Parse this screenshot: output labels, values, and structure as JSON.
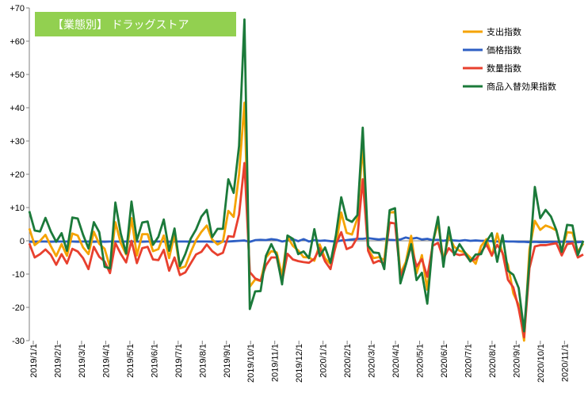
{
  "chart_data": {
    "type": "line",
    "title": "【業態別】 ドラッグストア",
    "title_bg_color": "#92D050",
    "ylim": [
      -30,
      70
    ],
    "yticks": [
      70,
      60,
      50,
      40,
      30,
      20,
      10,
      0,
      -10,
      -20,
      -30
    ],
    "ytick_labels": [
      "+70",
      "+60",
      "+50",
      "+40",
      "+30",
      "+20",
      "+10",
      "0",
      "-10",
      "-20",
      "-30"
    ],
    "xtick_labels": [
      "2019/1/1",
      "2019/2/1",
      "2019/3/1",
      "2019/4/1",
      "2019/5/1",
      "2019/6/1",
      "2019/7/1",
      "2019/8/1",
      "2019/9/1",
      "2019/10/1",
      "2019/11/1",
      "2019/12/1",
      "2020/1/1",
      "2020/2/1",
      "2020/3/1",
      "2020/4/1",
      "2020/5/1",
      "2020/6/1",
      "2020/7/1",
      "2020/8/1",
      "2020/9/1",
      "2020/10/1",
      "2020/11/1"
    ],
    "x_period": "weekly",
    "legend_position": "top-right",
    "grid": false,
    "series": [
      {
        "name": "支出指数",
        "color": "#F5A300",
        "values": [
          3.7,
          -1.3,
          0.0,
          1.8,
          -1.6,
          -4.6,
          -1.0,
          -4.5,
          2.2,
          1.6,
          -2.0,
          -4.0,
          2.7,
          -0.9,
          -2.4,
          -7.9,
          5.6,
          -0.7,
          -4.1,
          6.8,
          -4.4,
          2.0,
          2.0,
          -3.1,
          -2.5,
          1.6,
          -5.2,
          2.0,
          -8.3,
          -7.7,
          -3.5,
          0.2,
          2.7,
          4.6,
          0.4,
          -1.1,
          -0.2,
          9.0,
          7.2,
          20.0,
          41.5,
          -13.8,
          -11.6,
          -12.1,
          -5.0,
          -3.1,
          -3.5,
          -10.5,
          1.2,
          -1.5,
          -2.9,
          -4.9,
          -5.0,
          -6.0,
          -1.1,
          -5.3,
          -7.0,
          -1.6,
          8.5,
          2.4,
          1.9,
          6.7,
          28.8,
          -2.5,
          -5.2,
          -4.9,
          -5.8,
          8.5,
          8.7,
          -9.8,
          -6.4,
          1.5,
          -9.8,
          -4.3,
          -14.7,
          -0.7,
          5.5,
          -5.9,
          1.5,
          -1.8,
          -3.0,
          -3.5,
          -5.0,
          -6.9,
          -1.6,
          0.5,
          -4.5,
          2.2,
          -3.9,
          -7.2,
          -15.8,
          -19.3,
          -30.0,
          -2.5,
          6.0,
          3.3,
          4.6,
          4.0,
          3.1,
          -3.2,
          2.6,
          2.4,
          -3.3,
          -0.8
        ]
      },
      {
        "name": "価格指数",
        "color": "#2E5FC4",
        "values": [
          -0.3,
          -0.3,
          -0.2,
          -0.2,
          -0.3,
          -0.2,
          -0.2,
          -0.2,
          -0.2,
          -0.3,
          -0.2,
          -0.2,
          -0.3,
          -0.2,
          -0.3,
          -0.2,
          -0.2,
          -0.3,
          -0.2,
          -0.2,
          -0.2,
          -0.3,
          -0.2,
          -0.2,
          -0.2,
          -0.2,
          -0.3,
          -0.2,
          -0.2,
          -0.2,
          -0.3,
          -0.2,
          -0.2,
          -0.2,
          -0.3,
          -0.2,
          -0.2,
          -0.2,
          -0.1,
          0.0,
          0.1,
          -0.3,
          0.2,
          0.3,
          0.2,
          0.5,
          0.3,
          -0.2,
          0.1,
          0.5,
          -0.1,
          0.5,
          -0.2,
          0.2,
          0.0,
          0.1,
          -0.1,
          -0.2,
          0.1,
          0.2,
          0.4,
          0.6,
          0.6,
          0.8,
          0.6,
          0.4,
          0.6,
          0.3,
          0.2,
          0.4,
          1.0,
          0.6,
          0.9,
          0.4,
          0.6,
          0.2,
          0.3,
          0.0,
          0.3,
          0.1,
          0.0,
          0.2,
          0.0,
          0.1,
          0.0,
          0.0,
          -0.1,
          -0.2,
          -0.1,
          -0.2,
          -0.2,
          -0.3,
          -0.3,
          -0.4,
          -0.3,
          -0.4,
          -0.4,
          -0.3,
          -0.4,
          -0.3,
          -0.3,
          -0.4,
          -0.4,
          -0.3
        ]
      },
      {
        "name": "数量指数",
        "color": "#E8402E",
        "values": [
          -0.8,
          -5.0,
          -4.0,
          -2.6,
          -4.2,
          -7.2,
          -4.0,
          -6.8,
          -2.4,
          -3.2,
          -5.2,
          -8.5,
          -1.8,
          -4.8,
          -6.2,
          -9.7,
          -0.7,
          -3.9,
          -6.5,
          0.0,
          -6.7,
          -2.2,
          -1.8,
          -5.6,
          -5.8,
          -2.7,
          -9.0,
          -5.0,
          -10.3,
          -9.5,
          -6.8,
          -4.1,
          -3.3,
          -1.1,
          -3.1,
          -4.3,
          -3.6,
          1.4,
          1.2,
          7.9,
          23.4,
          -9.4,
          -11.3,
          -12.0,
          -7.4,
          -5.0,
          -5.0,
          -12.3,
          -3.9,
          -5.6,
          -6.1,
          -6.4,
          -6.6,
          -5.4,
          -2.2,
          -6.2,
          -8.5,
          -1.1,
          2.6,
          -2.5,
          -1.8,
          1.0,
          18.5,
          -3.0,
          -6.7,
          -6.0,
          -6.8,
          5.5,
          5.2,
          -10.5,
          -7.2,
          -1.5,
          -7.7,
          -5.5,
          -10.8,
          -1.5,
          -0.6,
          -5.4,
          -2.2,
          -3.8,
          -4.3,
          -4.0,
          -6.1,
          -5.5,
          -3.4,
          -1.1,
          -4.4,
          -1.2,
          -3.6,
          -11.7,
          -14.0,
          -20.4,
          -29.0,
          -8.2,
          -1.7,
          -1.3,
          -1.3,
          -1.0,
          -0.7,
          -4.4,
          -1.0,
          -0.7,
          -5.0,
          -4.1
        ]
      },
      {
        "name": "商品入替効果指数",
        "color": "#1B7A3A",
        "values": [
          8.9,
          3.1,
          2.8,
          6.9,
          2.8,
          -0.3,
          2.3,
          -3.0,
          7.0,
          6.7,
          1.8,
          -2.3,
          5.6,
          2.6,
          -7.8,
          -8.3,
          11.5,
          2.2,
          -3.8,
          11.8,
          0.2,
          5.5,
          5.8,
          -1.2,
          1.2,
          6.4,
          -3.0,
          3.7,
          -7.6,
          -4.0,
          0.6,
          3.4,
          7.3,
          9.3,
          1.1,
          3.6,
          3.6,
          18.5,
          14.4,
          28.5,
          66.5,
          -20.5,
          -15.2,
          -15.1,
          -4.5,
          -1.0,
          -4.4,
          -13.1,
          1.6,
          0.6,
          -4.0,
          -3.2,
          -5.2,
          3.5,
          -4.6,
          -2.0,
          -6.6,
          1.6,
          13.1,
          6.5,
          5.7,
          7.7,
          34.0,
          -1.5,
          -3.5,
          -3.7,
          -8.5,
          9.2,
          9.8,
          -12.8,
          -7.2,
          -1.0,
          -11.8,
          -9.6,
          -18.9,
          -0.9,
          7.2,
          -7.8,
          4.1,
          -4.3,
          -1.0,
          -3.5,
          -6.2,
          -4.1,
          -4.0,
          -0.2,
          2.3,
          -6.3,
          1.7,
          -9.0,
          -10.2,
          -14.2,
          -27.2,
          -6.0,
          16.2,
          6.8,
          9.3,
          7.3,
          3.2,
          -3.3,
          4.8,
          4.6,
          -4.3,
          0.0
        ]
      }
    ]
  }
}
